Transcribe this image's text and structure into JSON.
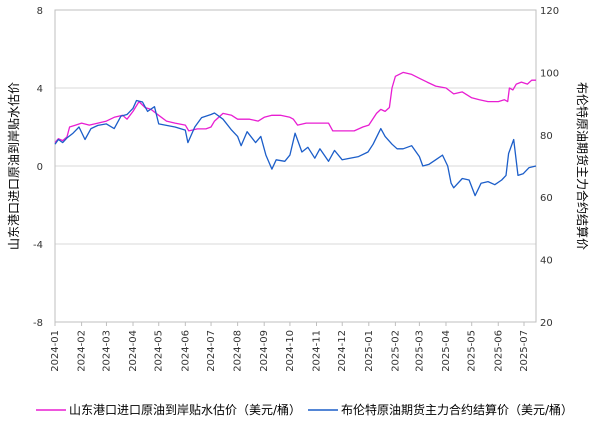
{
  "chart_data": {
    "type": "line",
    "left_axis": {
      "title": "山东港口进口原油到岸贴水估价",
      "ticks": [
        "8",
        "4",
        "0",
        "-4",
        "-8"
      ],
      "ylim": [
        -8,
        8
      ]
    },
    "right_axis": {
      "title": "布伦特原油期货主力合约结算价",
      "ticks": [
        "120",
        "100",
        "80",
        "60",
        "40",
        "20"
      ],
      "ylim": [
        20,
        120
      ]
    },
    "x_axis": {
      "ticks": [
        "2024-01",
        "2024-02",
        "2024-03",
        "2024-04",
        "2024-05",
        "2024-06",
        "2024-07",
        "2024-08",
        "2024-09",
        "2024-10",
        "2024-11",
        "2024-12",
        "2025-01",
        "2025-02",
        "2025-03",
        "2025-04",
        "2025-05",
        "2025-06",
        "2025-07"
      ],
      "start": "2024-01-01",
      "end": "2025-07-15"
    },
    "grid": true,
    "legend_position": "bottom",
    "series": [
      {
        "name": "山东港口进口原油到岸贴水估价（美元/桶）",
        "axis": "left",
        "color": "#e81ed2",
        "points": [
          [
            "2024-01-01",
            1.2
          ],
          [
            "2024-01-05",
            1.4
          ],
          [
            "2024-01-10",
            1.3
          ],
          [
            "2024-01-15",
            1.5
          ],
          [
            "2024-01-18",
            2.0
          ],
          [
            "2024-01-25",
            2.1
          ],
          [
            "2024-02-01",
            2.2
          ],
          [
            "2024-02-10",
            2.1
          ],
          [
            "2024-02-20",
            2.2
          ],
          [
            "2024-03-01",
            2.3
          ],
          [
            "2024-03-10",
            2.5
          ],
          [
            "2024-03-20",
            2.6
          ],
          [
            "2024-03-25",
            2.4
          ],
          [
            "2024-04-01",
            2.8
          ],
          [
            "2024-04-08",
            3.3
          ],
          [
            "2024-04-15",
            3.0
          ],
          [
            "2024-04-22",
            2.9
          ],
          [
            "2024-05-01",
            2.6
          ],
          [
            "2024-05-10",
            2.3
          ],
          [
            "2024-05-20",
            2.2
          ],
          [
            "2024-06-01",
            2.1
          ],
          [
            "2024-06-05",
            1.8
          ],
          [
            "2024-06-15",
            1.9
          ],
          [
            "2024-06-25",
            1.9
          ],
          [
            "2024-07-01",
            2.0
          ],
          [
            "2024-07-05",
            2.3
          ],
          [
            "2024-07-15",
            2.7
          ],
          [
            "2024-07-25",
            2.6
          ],
          [
            "2024-08-01",
            2.4
          ],
          [
            "2024-08-15",
            2.4
          ],
          [
            "2024-08-25",
            2.3
          ],
          [
            "2024-09-01",
            2.5
          ],
          [
            "2024-09-10",
            2.6
          ],
          [
            "2024-09-20",
            2.6
          ],
          [
            "2024-10-01",
            2.5
          ],
          [
            "2024-10-05",
            2.4
          ],
          [
            "2024-10-10",
            2.1
          ],
          [
            "2024-10-20",
            2.2
          ],
          [
            "2024-11-01",
            2.2
          ],
          [
            "2024-11-15",
            2.2
          ],
          [
            "2024-11-20",
            1.8
          ],
          [
            "2024-12-01",
            1.8
          ],
          [
            "2024-12-15",
            1.8
          ],
          [
            "2024-12-25",
            2.0
          ],
          [
            "2025-01-01",
            2.1
          ],
          [
            "2025-01-10",
            2.7
          ],
          [
            "2025-01-15",
            2.9
          ],
          [
            "2025-01-20",
            2.8
          ],
          [
            "2025-01-25",
            3.0
          ],
          [
            "2025-01-28",
            4.0
          ],
          [
            "2025-02-01",
            4.6
          ],
          [
            "2025-02-10",
            4.8
          ],
          [
            "2025-02-20",
            4.7
          ],
          [
            "2025-03-01",
            4.5
          ],
          [
            "2025-03-10",
            4.3
          ],
          [
            "2025-03-20",
            4.1
          ],
          [
            "2025-04-01",
            4.0
          ],
          [
            "2025-04-10",
            3.7
          ],
          [
            "2025-04-20",
            3.8
          ],
          [
            "2025-05-01",
            3.5
          ],
          [
            "2025-05-10",
            3.4
          ],
          [
            "2025-05-20",
            3.3
          ],
          [
            "2025-06-01",
            3.3
          ],
          [
            "2025-06-08",
            3.4
          ],
          [
            "2025-06-12",
            3.3
          ],
          [
            "2025-06-14",
            4.0
          ],
          [
            "2025-06-18",
            3.9
          ],
          [
            "2025-06-22",
            4.2
          ],
          [
            "2025-06-28",
            4.3
          ],
          [
            "2025-07-05",
            4.2
          ],
          [
            "2025-07-10",
            4.4
          ],
          [
            "2025-07-15",
            4.4
          ]
        ]
      },
      {
        "name": "布伦特原油期货主力合约结算价（美元/桶）",
        "axis": "right",
        "color": "#1c5ec9",
        "points": [
          [
            "2024-01-01",
            77.0
          ],
          [
            "2024-01-05",
            78.5
          ],
          [
            "2024-01-10",
            77.5
          ],
          [
            "2024-01-15",
            79.0
          ],
          [
            "2024-01-22",
            80.5
          ],
          [
            "2024-01-29",
            82.5
          ],
          [
            "2024-02-05",
            78.5
          ],
          [
            "2024-02-12",
            82.0
          ],
          [
            "2024-02-20",
            83.0
          ],
          [
            "2024-03-01",
            83.5
          ],
          [
            "2024-03-10",
            82.0
          ],
          [
            "2024-03-18",
            86.0
          ],
          [
            "2024-03-25",
            86.5
          ],
          [
            "2024-04-01",
            88.5
          ],
          [
            "2024-04-05",
            91.0
          ],
          [
            "2024-04-12",
            90.5
          ],
          [
            "2024-04-18",
            87.5
          ],
          [
            "2024-04-26",
            89.0
          ],
          [
            "2024-05-01",
            83.5
          ],
          [
            "2024-05-10",
            83.0
          ],
          [
            "2024-05-20",
            82.5
          ],
          [
            "2024-06-01",
            81.5
          ],
          [
            "2024-06-04",
            77.5
          ],
          [
            "2024-06-12",
            82.5
          ],
          [
            "2024-06-20",
            85.5
          ],
          [
            "2024-07-01",
            86.5
          ],
          [
            "2024-07-05",
            87.0
          ],
          [
            "2024-07-15",
            85.0
          ],
          [
            "2024-07-25",
            81.5
          ],
          [
            "2024-08-01",
            79.5
          ],
          [
            "2024-08-05",
            76.5
          ],
          [
            "2024-08-12",
            81.0
          ],
          [
            "2024-08-22",
            77.5
          ],
          [
            "2024-08-28",
            79.5
          ],
          [
            "2024-09-03",
            73.5
          ],
          [
            "2024-09-10",
            69.0
          ],
          [
            "2024-09-15",
            72.0
          ],
          [
            "2024-09-25",
            71.5
          ],
          [
            "2024-10-01",
            73.5
          ],
          [
            "2024-10-07",
            80.5
          ],
          [
            "2024-10-15",
            74.5
          ],
          [
            "2024-10-22",
            76.0
          ],
          [
            "2024-10-30",
            72.5
          ],
          [
            "2024-11-05",
            75.5
          ],
          [
            "2024-11-15",
            71.5
          ],
          [
            "2024-11-22",
            75.0
          ],
          [
            "2024-12-01",
            72.0
          ],
          [
            "2024-12-10",
            72.5
          ],
          [
            "2024-12-20",
            73.0
          ],
          [
            "2024-12-31",
            74.5
          ],
          [
            "2025-01-06",
            77.0
          ],
          [
            "2025-01-15",
            82.0
          ],
          [
            "2025-01-20",
            79.5
          ],
          [
            "2025-01-28",
            77.0
          ],
          [
            "2025-02-03",
            75.5
          ],
          [
            "2025-02-10",
            75.5
          ],
          [
            "2025-02-20",
            76.5
          ],
          [
            "2025-03-01",
            73.0
          ],
          [
            "2025-03-05",
            70.0
          ],
          [
            "2025-03-12",
            70.5
          ],
          [
            "2025-03-20",
            72.0
          ],
          [
            "2025-03-28",
            73.5
          ],
          [
            "2025-04-03",
            70.0
          ],
          [
            "2025-04-07",
            64.5
          ],
          [
            "2025-04-10",
            63.0
          ],
          [
            "2025-04-20",
            66.0
          ],
          [
            "2025-04-28",
            65.5
          ],
          [
            "2025-05-05",
            60.5
          ],
          [
            "2025-05-12",
            64.5
          ],
          [
            "2025-05-20",
            65.0
          ],
          [
            "2025-05-28",
            64.0
          ],
          [
            "2025-06-05",
            65.5
          ],
          [
            "2025-06-10",
            67.0
          ],
          [
            "2025-06-13",
            74.0
          ],
          [
            "2025-06-19",
            78.5
          ],
          [
            "2025-06-24",
            67.0
          ],
          [
            "2025-06-30",
            67.5
          ],
          [
            "2025-07-07",
            69.5
          ],
          [
            "2025-07-15",
            70.0
          ]
        ]
      }
    ]
  }
}
